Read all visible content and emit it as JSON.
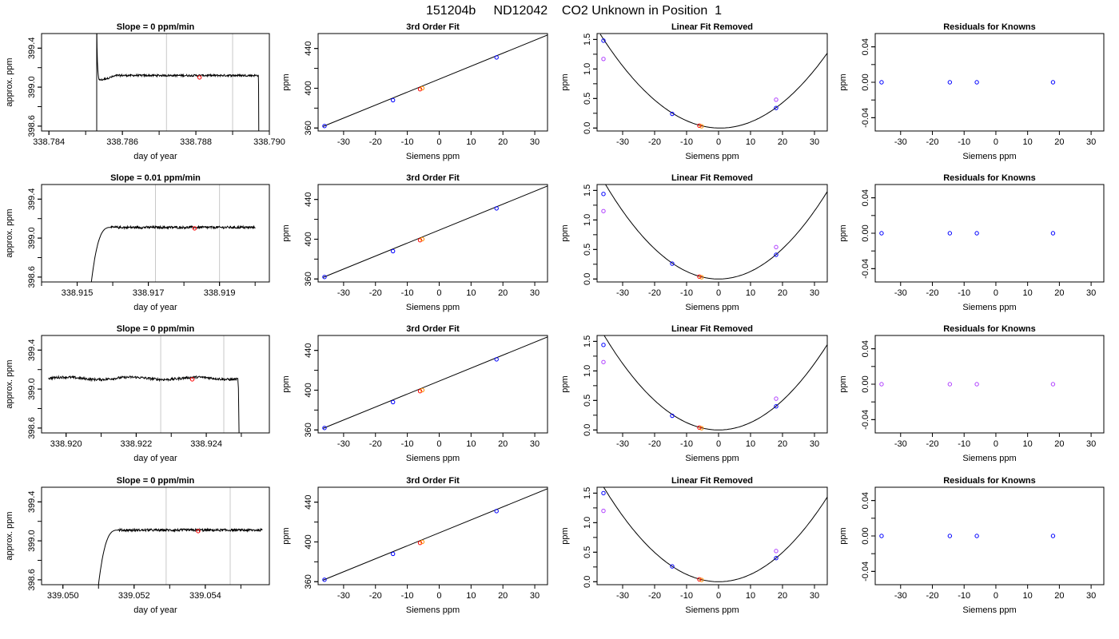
{
  "title": "151204b     ND12042    CO2 Unknown in Position  1",
  "colors": {
    "axis": "#000000",
    "line": "#000000",
    "window": "#c8c8c8",
    "point_blue": "#0000ff",
    "point_purple": "#b040ff",
    "point_red": "#ff0000",
    "point_orange": "#ff8c00"
  },
  "common": {
    "fit_title": "3rd Order Fit",
    "lin_title": "Linear Fit Removed",
    "res_title": "Residuals for Knowns",
    "x_siemens": "Siemens ppm",
    "y_ppm": "ppm",
    "x_doy": "day of year",
    "y_approx": "approx. ppm"
  },
  "chart_data": [
    {
      "row": 1,
      "type": "line",
      "title": "Slope =  0  ppm/min",
      "xlabel": "day of year",
      "ylabel": "approx. ppm",
      "xlim": [
        338.7838,
        338.79
      ],
      "ylim": [
        398.55,
        399.55
      ],
      "xticks": [
        "338.784",
        "338.786",
        "338.788",
        "338.790"
      ],
      "yticks": [
        "398.6",
        "399.0",
        "399.4"
      ],
      "window": [
        338.7872,
        338.789
      ],
      "marker": [
        338.7881,
        399.1
      ],
      "trace": {
        "x_start": 338.7853,
        "rise": "spike",
        "level": 399.12,
        "x_drop": 338.7897,
        "drop_to": 398.55
      }
    },
    {
      "row": 1,
      "type": "line",
      "title": "3rd Order Fit",
      "xlabel": "Siemens ppm",
      "ylabel": "ppm",
      "xlim": [
        -38,
        34
      ],
      "ylim": [
        357,
        455
      ],
      "xticks": [
        "-30",
        "-20",
        "-10",
        "0",
        "10",
        "20",
        "30"
      ],
      "yticks": [
        "360",
        "400",
        "440"
      ],
      "fit": {
        "x": [
          -36.5,
          34
        ],
        "y": [
          361.5,
          453.5
        ]
      },
      "points": [
        {
          "x": -36,
          "y": 362,
          "color": "blue"
        },
        {
          "x": -14.5,
          "y": 388,
          "color": "blue"
        },
        {
          "x": -6,
          "y": 399,
          "color": "red"
        },
        {
          "x": -5.3,
          "y": 400,
          "color": "orange"
        },
        {
          "x": 18,
          "y": 431,
          "color": "blue"
        }
      ]
    },
    {
      "row": 1,
      "type": "line",
      "title": "Linear Fit Removed",
      "xlabel": "Siemens ppm",
      "ylabel": "ppm",
      "xlim": [
        -38,
        34
      ],
      "ylim": [
        -0.05,
        1.6
      ],
      "xticks": [
        "-30",
        "-20",
        "-10",
        "0",
        "10",
        "20",
        "30"
      ],
      "yticks": [
        "0.0",
        "0.5",
        "1.0",
        "1.5"
      ],
      "curve": {
        "vertex": [
          0.5,
          0.0
        ],
        "coef": 0.00113
      },
      "points": [
        {
          "x": -36,
          "y": 1.48,
          "color": "blue"
        },
        {
          "x": -36,
          "y": 1.17,
          "color": "purple"
        },
        {
          "x": -14.5,
          "y": 0.24,
          "color": "blue"
        },
        {
          "x": -6,
          "y": 0.04,
          "color": "red"
        },
        {
          "x": -5.3,
          "y": 0.03,
          "color": "orange"
        },
        {
          "x": 18,
          "y": 0.34,
          "color": "blue"
        },
        {
          "x": 18,
          "y": 0.48,
          "color": "purple"
        }
      ]
    },
    {
      "row": 1,
      "type": "scatter",
      "title": "Residuals for Knowns",
      "xlabel": "Siemens ppm",
      "ylabel": "ppm",
      "xlim": [
        -38,
        34
      ],
      "ylim": [
        -0.055,
        0.055
      ],
      "xticks": [
        "-30",
        "-20",
        "-10",
        "0",
        "10",
        "20",
        "30"
      ],
      "yticks": [
        "-0.04",
        "0.00",
        "0.04"
      ],
      "points": [
        {
          "x": -36,
          "y": 0,
          "color": "blue"
        },
        {
          "x": -14.5,
          "y": 0,
          "color": "blue"
        },
        {
          "x": -6,
          "y": 0,
          "color": "blue"
        },
        {
          "x": 18,
          "y": 0,
          "color": "blue"
        }
      ]
    },
    {
      "row": 2,
      "type": "line",
      "title": "Slope =  0.01  ppm/min",
      "xlabel": "day of year",
      "ylabel": "approx. ppm",
      "xlim": [
        338.914,
        338.9204
      ],
      "ylim": [
        398.55,
        399.55
      ],
      "xticks": [
        "338.915",
        "338.917",
        "338.919"
      ],
      "yticks": [
        "398.6",
        "399.0",
        "399.4"
      ],
      "window": [
        338.9172,
        338.919
      ],
      "marker": [
        338.9183,
        399.1
      ],
      "trace": {
        "x_start": 338.9154,
        "rise": "smooth",
        "level": 399.11,
        "x_drop": null,
        "x_end": 338.92
      }
    },
    {
      "row": 2,
      "type": "line",
      "title": "3rd Order Fit",
      "xlabel": "Siemens ppm",
      "ylabel": "ppm",
      "xlim": [
        -38,
        34
      ],
      "ylim": [
        357,
        455
      ],
      "xticks": [
        "-30",
        "-20",
        "-10",
        "0",
        "10",
        "20",
        "30"
      ],
      "yticks": [
        "360",
        "400",
        "440"
      ],
      "fit": {
        "x": [
          -36.5,
          34
        ],
        "y": [
          361.5,
          453.5
        ]
      },
      "points": [
        {
          "x": -36,
          "y": 362,
          "color": "blue"
        },
        {
          "x": -14.5,
          "y": 388,
          "color": "blue"
        },
        {
          "x": -6,
          "y": 399,
          "color": "red"
        },
        {
          "x": -5.3,
          "y": 400,
          "color": "orange"
        },
        {
          "x": 18,
          "y": 431,
          "color": "blue"
        }
      ]
    },
    {
      "row": 2,
      "type": "line",
      "title": "Linear Fit Removed",
      "xlabel": "Siemens ppm",
      "ylabel": "ppm",
      "xlim": [
        -38,
        34
      ],
      "ylim": [
        -0.05,
        1.6
      ],
      "xticks": [
        "-30",
        "-20",
        "-10",
        "0",
        "10",
        "20",
        "30"
      ],
      "yticks": [
        "0.0",
        "0.5",
        "1.0",
        "1.5"
      ],
      "curve": {
        "vertex": [
          0.0,
          0.0
        ],
        "coef": 0.00128
      },
      "points": [
        {
          "x": -36,
          "y": 1.44,
          "color": "blue"
        },
        {
          "x": -36,
          "y": 1.15,
          "color": "purple"
        },
        {
          "x": -14.5,
          "y": 0.26,
          "color": "blue"
        },
        {
          "x": -6,
          "y": 0.04,
          "color": "red"
        },
        {
          "x": -5.3,
          "y": 0.03,
          "color": "orange"
        },
        {
          "x": 18,
          "y": 0.41,
          "color": "blue"
        },
        {
          "x": 18,
          "y": 0.54,
          "color": "purple"
        }
      ]
    },
    {
      "row": 2,
      "type": "scatter",
      "title": "Residuals for Knowns",
      "xlabel": "Siemens ppm",
      "ylabel": "ppm",
      "xlim": [
        -38,
        34
      ],
      "ylim": [
        -0.055,
        0.055
      ],
      "xticks": [
        "-30",
        "-20",
        "-10",
        "0",
        "10",
        "20",
        "30"
      ],
      "yticks": [
        "-0.04",
        "0.00",
        "0.04"
      ],
      "points": [
        {
          "x": -36,
          "y": 0,
          "color": "blue"
        },
        {
          "x": -14.5,
          "y": 0,
          "color": "blue"
        },
        {
          "x": -6,
          "y": 0,
          "color": "blue"
        },
        {
          "x": 18,
          "y": 0,
          "color": "blue"
        }
      ]
    },
    {
      "row": 3,
      "type": "line",
      "title": "Slope =  0  ppm/min",
      "xlabel": "day of year",
      "ylabel": "approx. ppm",
      "xlim": [
        338.9193,
        338.9258
      ],
      "ylim": [
        398.55,
        399.55
      ],
      "xticks": [
        "338.920",
        "338.922",
        "338.924"
      ],
      "yticks": [
        "398.6",
        "399.0",
        "399.4"
      ],
      "window": [
        338.9227,
        338.9245
      ],
      "marker": [
        338.9236,
        399.1
      ],
      "trace": {
        "x_start": 338.9195,
        "rise": "none",
        "level": 399.11,
        "x_drop": 338.9249,
        "drop_to": 398.55
      }
    },
    {
      "row": 3,
      "type": "line",
      "title": "3rd Order Fit",
      "xlabel": "Siemens ppm",
      "ylabel": "ppm",
      "xlim": [
        -38,
        34
      ],
      "ylim": [
        357,
        455
      ],
      "xticks": [
        "-30",
        "-20",
        "-10",
        "0",
        "10",
        "20",
        "30"
      ],
      "yticks": [
        "360",
        "400",
        "440"
      ],
      "fit": {
        "x": [
          -36.5,
          34
        ],
        "y": [
          361.5,
          453.5
        ]
      },
      "points": [
        {
          "x": -36,
          "y": 362,
          "color": "blue"
        },
        {
          "x": -14.5,
          "y": 388,
          "color": "blue"
        },
        {
          "x": -6,
          "y": 399,
          "color": "red"
        },
        {
          "x": -5.3,
          "y": 400,
          "color": "orange"
        },
        {
          "x": 18,
          "y": 431,
          "color": "blue"
        }
      ]
    },
    {
      "row": 3,
      "type": "line",
      "title": "Linear Fit Removed",
      "xlabel": "Siemens ppm",
      "ylabel": "ppm",
      "xlim": [
        -38,
        34
      ],
      "ylim": [
        -0.05,
        1.6
      ],
      "xticks": [
        "-30",
        "-20",
        "-10",
        "0",
        "10",
        "20",
        "30"
      ],
      "yticks": [
        "0.0",
        "0.5",
        "1.0",
        "1.5"
      ],
      "curve": {
        "vertex": [
          0.0,
          0.0
        ],
        "coef": 0.00125
      },
      "points": [
        {
          "x": -36,
          "y": 1.44,
          "color": "blue"
        },
        {
          "x": -36,
          "y": 1.15,
          "color": "purple"
        },
        {
          "x": -14.5,
          "y": 0.24,
          "color": "blue"
        },
        {
          "x": -6,
          "y": 0.04,
          "color": "red"
        },
        {
          "x": -5.3,
          "y": 0.03,
          "color": "orange"
        },
        {
          "x": 18,
          "y": 0.4,
          "color": "blue"
        },
        {
          "x": 18,
          "y": 0.53,
          "color": "purple"
        }
      ]
    },
    {
      "row": 3,
      "type": "scatter",
      "title": "Residuals for Knowns",
      "xlabel": "Siemens ppm",
      "ylabel": "ppm",
      "xlim": [
        -38,
        34
      ],
      "ylim": [
        -0.055,
        0.055
      ],
      "xticks": [
        "-30",
        "-20",
        "-10",
        "0",
        "10",
        "20",
        "30"
      ],
      "yticks": [
        "-0.04",
        "0.00",
        "0.04"
      ],
      "points": [
        {
          "x": -36,
          "y": 0,
          "color": "purple"
        },
        {
          "x": -14.5,
          "y": 0,
          "color": "purple"
        },
        {
          "x": -6,
          "y": 0,
          "color": "purple"
        },
        {
          "x": 18,
          "y": 0,
          "color": "purple"
        }
      ]
    },
    {
      "row": 4,
      "type": "line",
      "title": "Slope =  0  ppm/min",
      "xlabel": "day of year",
      "ylabel": "approx. ppm",
      "xlim": [
        339.0494,
        339.0558
      ],
      "ylim": [
        398.55,
        399.55
      ],
      "xticks": [
        "339.050",
        "339.052",
        "339.054"
      ],
      "yticks": [
        "398.6",
        "399.0",
        "399.4"
      ],
      "window": [
        339.0529,
        339.0547
      ],
      "marker": [
        339.0538,
        399.1
      ],
      "trace": {
        "x_start": 339.051,
        "rise": "smooth",
        "level": 399.11,
        "x_drop": null,
        "x_end": 339.0556
      }
    },
    {
      "row": 4,
      "type": "line",
      "title": "3rd Order Fit",
      "xlabel": "Siemens ppm",
      "ylabel": "ppm",
      "xlim": [
        -38,
        34
      ],
      "ylim": [
        357,
        455
      ],
      "xticks": [
        "-30",
        "-20",
        "-10",
        "0",
        "10",
        "20",
        "30"
      ],
      "yticks": [
        "360",
        "400",
        "440"
      ],
      "fit": {
        "x": [
          -36.5,
          34
        ],
        "y": [
          361.5,
          453.5
        ]
      },
      "points": [
        {
          "x": -36,
          "y": 362,
          "color": "blue"
        },
        {
          "x": -14.5,
          "y": 388,
          "color": "blue"
        },
        {
          "x": -6,
          "y": 399,
          "color": "red"
        },
        {
          "x": -5.3,
          "y": 400,
          "color": "orange"
        },
        {
          "x": 18,
          "y": 431,
          "color": "blue"
        }
      ]
    },
    {
      "row": 4,
      "type": "line",
      "title": "Linear Fit Removed",
      "xlabel": "Siemens ppm",
      "ylabel": "ppm",
      "xlim": [
        -38,
        34
      ],
      "ylim": [
        -0.05,
        1.6
      ],
      "xticks": [
        "-30",
        "-20",
        "-10",
        "0",
        "10",
        "20",
        "30"
      ],
      "yticks": [
        "0.0",
        "0.5",
        "1.0",
        "1.5"
      ],
      "curve": {
        "vertex": [
          0.0,
          0.0
        ],
        "coef": 0.00124
      },
      "points": [
        {
          "x": -36,
          "y": 1.5,
          "color": "blue"
        },
        {
          "x": -36,
          "y": 1.2,
          "color": "purple"
        },
        {
          "x": -14.5,
          "y": 0.26,
          "color": "blue"
        },
        {
          "x": -6,
          "y": 0.04,
          "color": "red"
        },
        {
          "x": -5.3,
          "y": 0.03,
          "color": "orange"
        },
        {
          "x": 18,
          "y": 0.4,
          "color": "blue"
        },
        {
          "x": 18,
          "y": 0.52,
          "color": "purple"
        }
      ]
    },
    {
      "row": 4,
      "type": "scatter",
      "title": "Residuals for Knowns",
      "xlabel": "Siemens ppm",
      "ylabel": "ppm",
      "xlim": [
        -38,
        34
      ],
      "ylim": [
        -0.055,
        0.055
      ],
      "xticks": [
        "-30",
        "-20",
        "-10",
        "0",
        "10",
        "20",
        "30"
      ],
      "yticks": [
        "-0.04",
        "0.00",
        "0.04"
      ],
      "points": [
        {
          "x": -36,
          "y": 0,
          "color": "blue"
        },
        {
          "x": -14.5,
          "y": 0,
          "color": "blue"
        },
        {
          "x": -6,
          "y": 0,
          "color": "blue"
        },
        {
          "x": 18,
          "y": 0,
          "color": "blue"
        }
      ]
    }
  ]
}
